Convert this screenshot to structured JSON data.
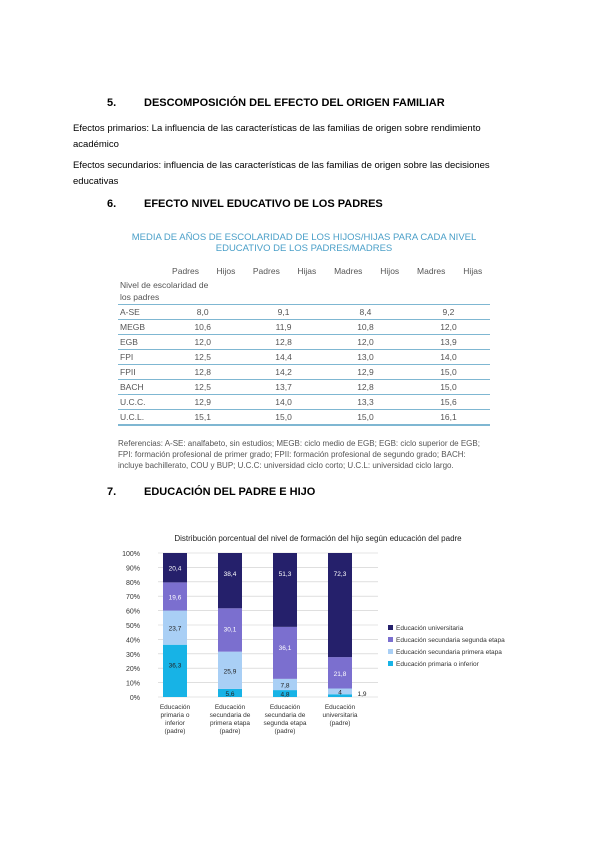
{
  "sections": [
    {
      "num": "5.",
      "title": "DESCOMPOSICIÓN DEL EFECTO DEL ORIGEN FAMILIAR"
    },
    {
      "num": "6.",
      "title": "EFECTO NIVEL EDUCATIVO DE LOS PADRES"
    },
    {
      "num": "7.",
      "title": "EDUCACIÓN DEL PADRE E HIJO"
    }
  ],
  "paragraphs": [
    "Efectos primarios: La influencia de las características de las familias de origen sobre rendimiento académico",
    "Efectos secundarios: influencia de las características de las familias de origen sobre las decisiones educativas"
  ],
  "table": {
    "title": "MEDIA DE AÑOS DE ESCOLARIDAD DE LOS HIJOS/HIJAS PARA CADA NIVEL EDUCATIVO DE LOS PADRES/MADRES",
    "headers": [
      "Padres",
      "Hijos",
      "Padres",
      "Hijas",
      "Madres",
      "Hijos",
      "Madres",
      "Hijas"
    ],
    "row_header": "Nivel de escolaridad de los padres",
    "rows": [
      {
        "label": "A-SE",
        "values": [
          "8,0",
          "9,1",
          "8,4",
          "9,2"
        ]
      },
      {
        "label": "MEGB",
        "values": [
          "10,6",
          "11,9",
          "10,8",
          "12,0"
        ]
      },
      {
        "label": "EGB",
        "values": [
          "12,0",
          "12,8",
          "12,0",
          "13,9"
        ]
      },
      {
        "label": "FPI",
        "values": [
          "12,5",
          "14,4",
          "13,0",
          "14,0"
        ]
      },
      {
        "label": "FPII",
        "values": [
          "12,8",
          "14,2",
          "12,9",
          "15,0"
        ]
      },
      {
        "label": "BACH",
        "values": [
          "12,5",
          "13,7",
          "12,8",
          "15,0"
        ]
      },
      {
        "label": "U.C.C.",
        "values": [
          "12,9",
          "14,0",
          "13,3",
          "15,6"
        ]
      },
      {
        "label": "U.C.L.",
        "values": [
          "15,1",
          "15,0",
          "15,0",
          "16,1"
        ]
      }
    ],
    "references": "Referencias: A-SE: analfabeto, sin estudios; MEGB: ciclo medio de EGB; EGB: ciclo superior de EGB; FPI: formación profesional de primer grado; FPII: formación profesional de segundo grado; BACH: incluye bachillerato, COU y BUP; U.C.C: universidad ciclo corto; U.C.L: universidad ciclo largo."
  },
  "chart_data": {
    "type": "bar",
    "stacked": true,
    "title": "Distribución porcentual del nivel de formación del hijo según educación del padre",
    "categories": [
      "Educación primaria o inferior (padre)",
      "Educación secundaria de primera etapa (padre)",
      "Educación secundaria de segunda etapa (padre)",
      "Educación universitaria (padre)"
    ],
    "ylim": [
      0,
      100
    ],
    "yticks": [
      "0%",
      "10%",
      "20%",
      "30%",
      "40%",
      "50%",
      "60%",
      "70%",
      "80%",
      "90%",
      "100%"
    ],
    "grid": true,
    "legend_position": "right",
    "series": [
      {
        "name": "Educación primaria o inferior",
        "color": "#17b3e6",
        "values": [
          36.3,
          5.6,
          4.8,
          1.9
        ]
      },
      {
        "name": "Educación secundaria primera etapa",
        "color": "#a9cff5",
        "values": [
          23.7,
          25.9,
          7.8,
          4
        ]
      },
      {
        "name": "Educación secundaria segunda etapa",
        "color": "#7b6fcf",
        "values": [
          19.6,
          30.1,
          36.1,
          21.8
        ]
      },
      {
        "name": "Educación universitaria",
        "color": "#25206b",
        "values": [
          20.4,
          38.4,
          51.3,
          72.3
        ]
      }
    ]
  }
}
